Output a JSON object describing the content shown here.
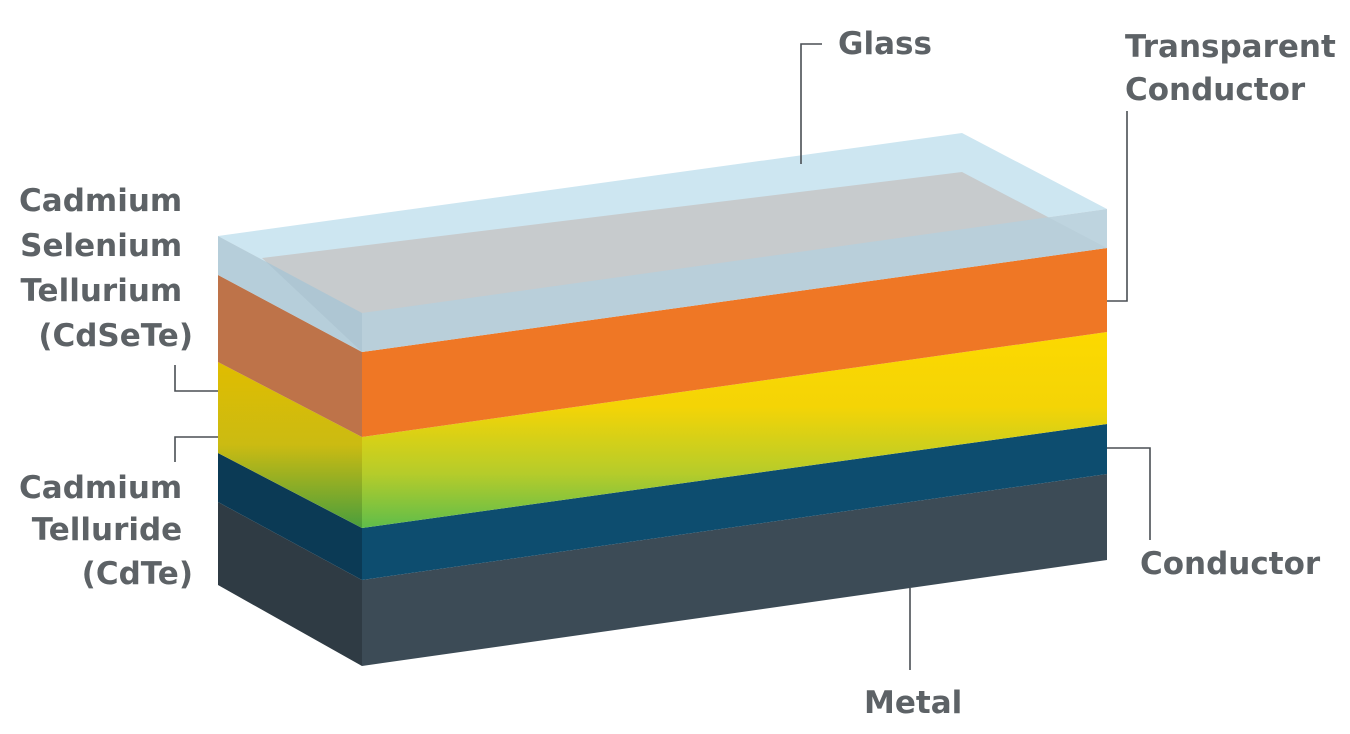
{
  "diagram": {
    "layers": [
      {
        "id": "glass",
        "name": "Glass",
        "color": "#bfe0ef"
      },
      {
        "id": "transparent-conductor",
        "name": "Transparent Conductor",
        "color": "#ef7725"
      },
      {
        "id": "cdsete",
        "name": "Cadmium Selenium Tellurium (CdSeTe)",
        "color": "#fbd800"
      },
      {
        "id": "cdte",
        "name": "Cadmium Telluride (CdTe)",
        "color": "#6cc04a"
      },
      {
        "id": "conductor",
        "name": "Conductor",
        "color": "#0d4d6f"
      },
      {
        "id": "metal",
        "name": "Metal",
        "color": "#3b4a55"
      }
    ],
    "labels": {
      "glass": [
        "Glass"
      ],
      "transparent_conductor": [
        "Transparent",
        "Conductor"
      ],
      "cdsete": [
        "Cadmium",
        "Selenium",
        "Tellurium",
        "(CdSeTe)"
      ],
      "cdte": [
        "Cadmium",
        "Telluride",
        "(CdTe)"
      ],
      "conductor": [
        "Conductor"
      ],
      "metal": [
        "Metal"
      ]
    },
    "label_color": "#5d6266"
  }
}
